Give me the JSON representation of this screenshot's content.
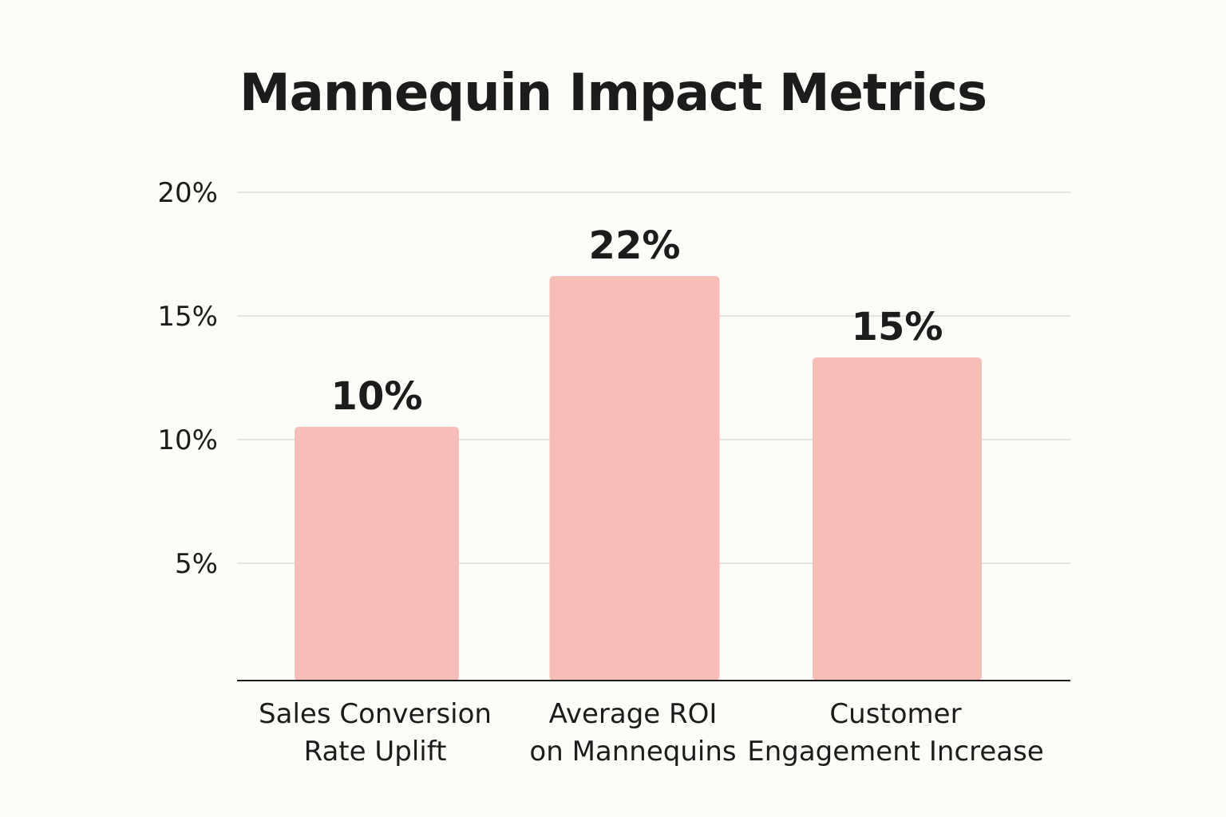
{
  "chart_data": {
    "type": "bar",
    "title": "Mannequin Impact Metrics",
    "categories": [
      [
        "Sales Conversion",
        "Rate Uplift"
      ],
      [
        "Average ROI",
        "on Mannequins"
      ],
      [
        "Customer",
        "Engagement Increase"
      ]
    ],
    "values": [
      10,
      22,
      15
    ],
    "value_labels": [
      "10%",
      "22%",
      "15%"
    ],
    "yticks": [
      5,
      10,
      15,
      20
    ],
    "ytick_labels": [
      "5%",
      "10%",
      "15%",
      "20%"
    ],
    "grid": true,
    "bar_color": "#f7bdb7",
    "xlabel": "",
    "ylabel": ""
  }
}
